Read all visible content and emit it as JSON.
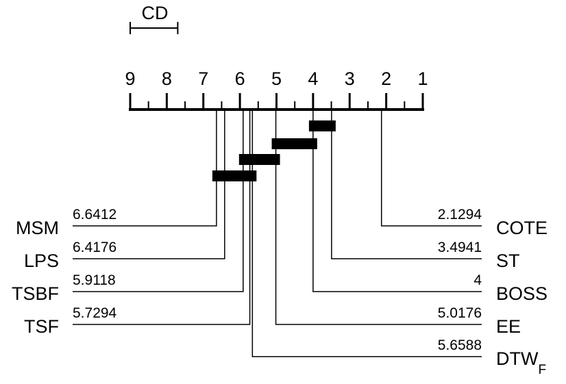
{
  "chart_data": {
    "type": "critical-difference",
    "cd_label": "CD",
    "cd_value": 1.3,
    "axis": {
      "min": 1,
      "max": 9,
      "reversed": true,
      "ticks": [
        "9",
        "8",
        "7",
        "6",
        "5",
        "4",
        "3",
        "2",
        "1"
      ]
    },
    "left_methods": [
      {
        "name": "MSM",
        "rank": 6.6412,
        "rank_label": "6.6412"
      },
      {
        "name": "LPS",
        "rank": 6.4176,
        "rank_label": "6.4176"
      },
      {
        "name": "TSBF",
        "rank": 5.9118,
        "rank_label": "5.9118"
      },
      {
        "name": "TSF",
        "rank": 5.7294,
        "rank_label": "5.7294"
      }
    ],
    "right_methods": [
      {
        "name": "COTE",
        "sub": "",
        "rank": 2.1294,
        "rank_label": "2.1294"
      },
      {
        "name": "ST",
        "sub": "",
        "rank": 3.4941,
        "rank_label": "3.4941"
      },
      {
        "name": "BOSS",
        "sub": "",
        "rank": 4.0,
        "rank_label": "4"
      },
      {
        "name": "EE",
        "sub": "",
        "rank": 5.0176,
        "rank_label": "5.0176"
      },
      {
        "name": "DTW",
        "sub": "F",
        "rank": 5.6588,
        "rank_label": "5.6588"
      }
    ],
    "cliques": [
      {
        "from": 3.4941,
        "to": 4.0
      },
      {
        "from": 4.0,
        "to": 5.0176
      },
      {
        "from": 5.0176,
        "to": 5.9118
      },
      {
        "from": 5.6588,
        "to": 6.6412
      }
    ]
  }
}
